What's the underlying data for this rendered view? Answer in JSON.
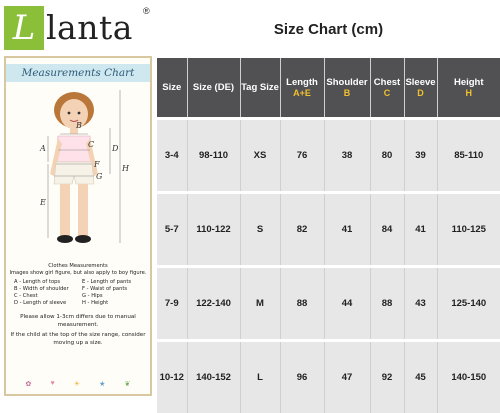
{
  "logo": {
    "letter": "L",
    "rest": "lanta",
    "reg": "®"
  },
  "measurements_chart": {
    "title": "Measurements Chart",
    "labels": {
      "A": "A",
      "B": "B",
      "C": "C",
      "D": "D",
      "E": "E",
      "F": "F",
      "G": "G",
      "H": "H"
    },
    "notes": {
      "heading1": "Clothes Measurements",
      "heading2": "Images show girl figure, but also apply to boy figure.",
      "legend": [
        "A - Length of tops",
        "E - Length of pants",
        "B - Width of shoulder",
        "F - Waist of pants",
        "C - Chest",
        "G - Hips",
        "D - Length of sleeve",
        "H - Height"
      ],
      "para1": "Please allow 1-3cm differs due to manual measurement.",
      "para2": "If the child at the top of the size range, consider moving up a size."
    }
  },
  "size_chart": {
    "title": "Size Chart (cm)",
    "headers": [
      {
        "label": "Size",
        "sub": ""
      },
      {
        "label": "Size (DE)",
        "sub": ""
      },
      {
        "label": "Tag Size",
        "sub": ""
      },
      {
        "label": "Length",
        "sub": "A+E"
      },
      {
        "label": "Shoulder",
        "sub": "B"
      },
      {
        "label": "Chest",
        "sub": "C"
      },
      {
        "label": "Sleeve",
        "sub": "D"
      },
      {
        "label": "Height",
        "sub": "H"
      }
    ],
    "rows": [
      [
        "3-4",
        "98-110",
        "XS",
        "76",
        "38",
        "80",
        "39",
        "85-110"
      ],
      [
        "5-7",
        "110-122",
        "S",
        "82",
        "41",
        "84",
        "41",
        "110-125"
      ],
      [
        "7-9",
        "122-140",
        "M",
        "88",
        "44",
        "88",
        "43",
        "125-140"
      ],
      [
        "10-12",
        "140-152",
        "L",
        "96",
        "47",
        "92",
        "45",
        "140-150"
      ]
    ]
  }
}
